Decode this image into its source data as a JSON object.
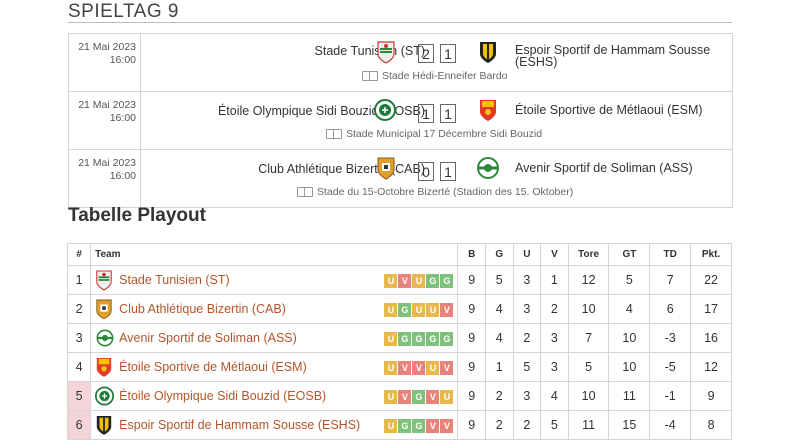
{
  "section_title": "SPIELTAG 9",
  "matches": [
    {
      "date": "21 Mai 2023",
      "time": "16:00",
      "home": "Stade Tunisien (ST)",
      "home_goals": "2",
      "away_goals": "1",
      "away": "Espoir Sportif de Hammam Sousse (ESHS)",
      "venue": "Stade Hédi-Enneifer Bardo"
    },
    {
      "date": "21 Mai 2023",
      "time": "16:00",
      "home": "Étoile Olympique Sidi Bouzid (EOSB)",
      "home_goals": "1",
      "away_goals": "1",
      "away": "Étoile Sportive de Métlaoui (ESM)",
      "venue": "Stade Municipal 17 Décembre Sidi Bouzid"
    },
    {
      "date": "21 Mai 2023",
      "time": "16:00",
      "home": "Club Athlétique Bizertin (CAB)",
      "home_goals": "0",
      "away_goals": "1",
      "away": "Avenir Sportif de Soliman (ASS)",
      "venue": "Stade du 15-Octobre Bizerté (Stadion des 15. Oktober)"
    }
  ],
  "table_title": "Tabelle Playout",
  "table": {
    "headers": [
      "#",
      "Team",
      "B",
      "G",
      "U",
      "V",
      "Tore",
      "GT",
      "TD",
      "Pkt."
    ],
    "rows": [
      {
        "rank": "1",
        "team": "Stade Tunisien (ST)",
        "form": [
          "U",
          "V",
          "U",
          "G",
          "G"
        ],
        "b": "9",
        "g": "5",
        "u": "3",
        "v": "1",
        "tore": "12",
        "gt": "5",
        "td": "7",
        "pkt": "22",
        "relegation": false
      },
      {
        "rank": "2",
        "team": "Club Athlétique Bizertin (CAB)",
        "form": [
          "U",
          "G",
          "U",
          "U",
          "V"
        ],
        "b": "9",
        "g": "4",
        "u": "3",
        "v": "2",
        "tore": "10",
        "gt": "4",
        "td": "6",
        "pkt": "17",
        "relegation": false
      },
      {
        "rank": "3",
        "team": "Avenir Sportif de Soliman (ASS)",
        "form": [
          "U",
          "G",
          "G",
          "G",
          "G"
        ],
        "b": "9",
        "g": "4",
        "u": "2",
        "v": "3",
        "tore": "7",
        "gt": "10",
        "td": "-3",
        "pkt": "16",
        "relegation": false
      },
      {
        "rank": "4",
        "team": "Étoile Sportive de Métlaoui (ESM)",
        "form": [
          "U",
          "V",
          "V",
          "U",
          "V"
        ],
        "b": "9",
        "g": "1",
        "u": "5",
        "v": "3",
        "tore": "5",
        "gt": "10",
        "td": "-5",
        "pkt": "12",
        "relegation": false
      },
      {
        "rank": "5",
        "team": "Étoile Olympique Sidi Bouzid (EOSB)",
        "form": [
          "U",
          "V",
          "G",
          "V",
          "U"
        ],
        "b": "9",
        "g": "2",
        "u": "3",
        "v": "4",
        "tore": "10",
        "gt": "11",
        "td": "-1",
        "pkt": "9",
        "relegation": true
      },
      {
        "rank": "6",
        "team": "Espoir Sportif de Hammam Sousse (ESHS)",
        "form": [
          "U",
          "G",
          "G",
          "V",
          "V"
        ],
        "b": "9",
        "g": "2",
        "u": "2",
        "v": "5",
        "tore": "11",
        "gt": "15",
        "td": "-4",
        "pkt": "8",
        "relegation": true
      }
    ]
  },
  "colors": {
    "team_link": "#b5552a",
    "form_U": "#e8b84a",
    "form_V": "#e8837b",
    "form_G": "#7fc07a",
    "relegation_bg": "#f4d4d8"
  }
}
